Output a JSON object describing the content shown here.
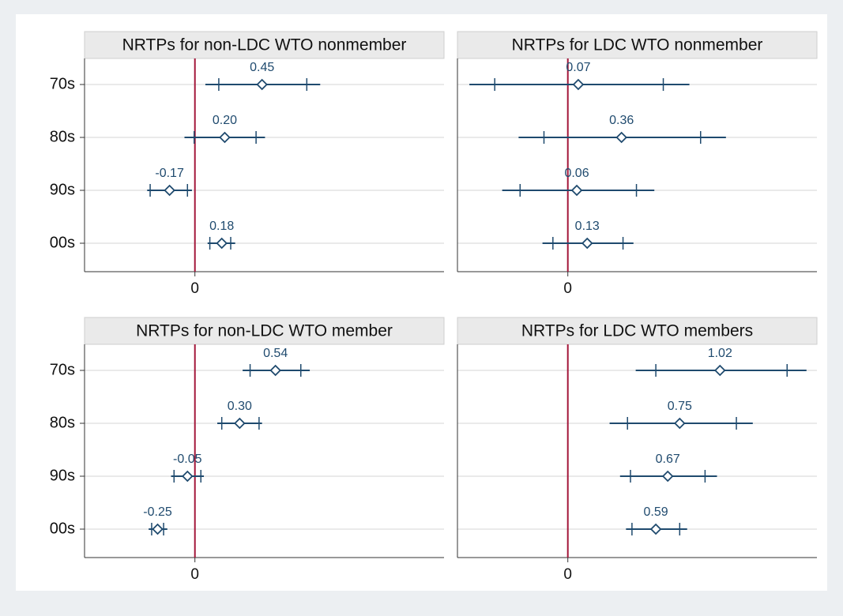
{
  "chart_data": [
    {
      "type": "coefplot",
      "title": "NRTPs for non-LDC WTO nonmember",
      "categories": [
        "70s",
        "80s",
        "90s",
        "00s"
      ],
      "values": [
        0.45,
        0.2,
        -0.17,
        0.18
      ],
      "value_labels": [
        "0.45",
        "0.20",
        "-0.17",
        "0.18"
      ],
      "outer_low": [
        0.07,
        -0.07,
        -0.32,
        0.085
      ],
      "outer_high": [
        0.84,
        0.47,
        -0.02,
        0.27
      ],
      "inner_low": [
        0.16,
        -0.005,
        -0.3,
        0.1
      ],
      "inner_high": [
        0.75,
        0.41,
        -0.05,
        0.24
      ],
      "xlim": [
        -0.74,
        1.67
      ],
      "xticks": [
        0
      ],
      "xline": 0,
      "color": "#1f4a6e",
      "xline_color": "#a3173a",
      "grid": true
    },
    {
      "type": "coefplot",
      "title": "NRTPs for LDC WTO nonmember",
      "categories": [
        "70s",
        "80s",
        "90s",
        "00s"
      ],
      "values": [
        0.07,
        0.36,
        0.06,
        0.13
      ],
      "value_labels": [
        "0.07",
        "0.36",
        "0.06",
        "0.13"
      ],
      "outer_low": [
        -0.66,
        -0.33,
        -0.44,
        -0.17
      ],
      "outer_high": [
        0.815,
        1.06,
        0.58,
        0.44
      ],
      "inner_low": [
        -0.49,
        -0.16,
        -0.32,
        -0.1
      ],
      "inner_high": [
        0.64,
        0.89,
        0.46,
        0.37
      ],
      "xlim": [
        -0.74,
        1.67
      ],
      "xticks": [
        0
      ],
      "xline": 0,
      "color": "#1f4a6e",
      "xline_color": "#a3173a",
      "grid": true
    },
    {
      "type": "coefplot",
      "title": "NRTPs for non-LDC WTO member",
      "categories": [
        "70s",
        "80s",
        "90s",
        "00s"
      ],
      "values": [
        0.54,
        0.3,
        -0.05,
        -0.25
      ],
      "value_labels": [
        "0.54",
        "0.30",
        "-0.05",
        "-0.25"
      ],
      "outer_low": [
        0.32,
        0.15,
        -0.16,
        -0.31
      ],
      "outer_high": [
        0.77,
        0.45,
        0.06,
        -0.185
      ],
      "inner_low": [
        0.37,
        0.18,
        -0.14,
        -0.29
      ],
      "inner_high": [
        0.71,
        0.43,
        0.04,
        -0.21
      ],
      "xlim": [
        -0.74,
        1.67
      ],
      "xticks": [
        0
      ],
      "xline": 0,
      "color": "#1f4a6e",
      "xline_color": "#a3173a",
      "grid": true
    },
    {
      "type": "coefplot",
      "title": "NRTPs for LDC WTO members",
      "categories": [
        "70s",
        "80s",
        "90s",
        "00s"
      ],
      "values": [
        1.02,
        0.75,
        0.67,
        0.59
      ],
      "value_labels": [
        "1.02",
        "0.75",
        "0.67",
        "0.59"
      ],
      "outer_low": [
        0.455,
        0.28,
        0.35,
        0.39
      ],
      "outer_high": [
        1.6,
        1.24,
        1.0,
        0.8
      ],
      "inner_low": [
        0.59,
        0.4,
        0.42,
        0.43
      ],
      "inner_high": [
        1.47,
        1.13,
        0.92,
        0.75
      ],
      "xlim": [
        -0.74,
        1.67
      ],
      "xticks": [
        0
      ],
      "xline": 0,
      "color": "#1f4a6e",
      "xline_color": "#a3173a",
      "grid": true
    }
  ]
}
